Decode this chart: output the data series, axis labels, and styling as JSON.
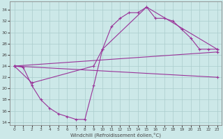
{
  "xlabel": "Windchill (Refroidissement éolien,°C)",
  "background_color": "#cce8e8",
  "line_color": "#993399",
  "xlim": [
    -0.5,
    23.5
  ],
  "ylim": [
    13.5,
    35.5
  ],
  "yticks": [
    14,
    16,
    18,
    20,
    22,
    24,
    26,
    28,
    30,
    32,
    34
  ],
  "xticks": [
    0,
    1,
    2,
    3,
    4,
    5,
    6,
    7,
    8,
    9,
    10,
    11,
    12,
    13,
    14,
    15,
    16,
    17,
    18,
    19,
    20,
    21,
    22,
    23
  ],
  "series1_x": [
    0,
    1,
    2,
    3,
    4,
    5,
    6,
    7,
    8,
    9,
    10,
    11,
    12,
    13,
    14,
    15,
    16,
    17,
    18,
    19,
    20,
    21,
    22,
    23
  ],
  "series1_y": [
    24.0,
    23.8,
    20.5,
    18.0,
    16.5,
    15.5,
    15.0,
    14.5,
    14.5,
    20.5,
    27.0,
    31.0,
    32.5,
    33.5,
    33.5,
    34.5,
    32.5,
    32.5,
    32.0,
    30.5,
    29.0,
    27.0,
    27.0,
    27.0
  ],
  "series2_x": [
    0,
    2,
    9,
    10,
    15,
    23
  ],
  "series2_y": [
    24.0,
    21.0,
    24.0,
    27.0,
    34.5,
    27.0
  ],
  "series3_x": [
    0,
    23
  ],
  "series3_y": [
    24.0,
    26.5
  ],
  "series4_x": [
    0,
    23
  ],
  "series4_y": [
    24.0,
    22.0
  ]
}
